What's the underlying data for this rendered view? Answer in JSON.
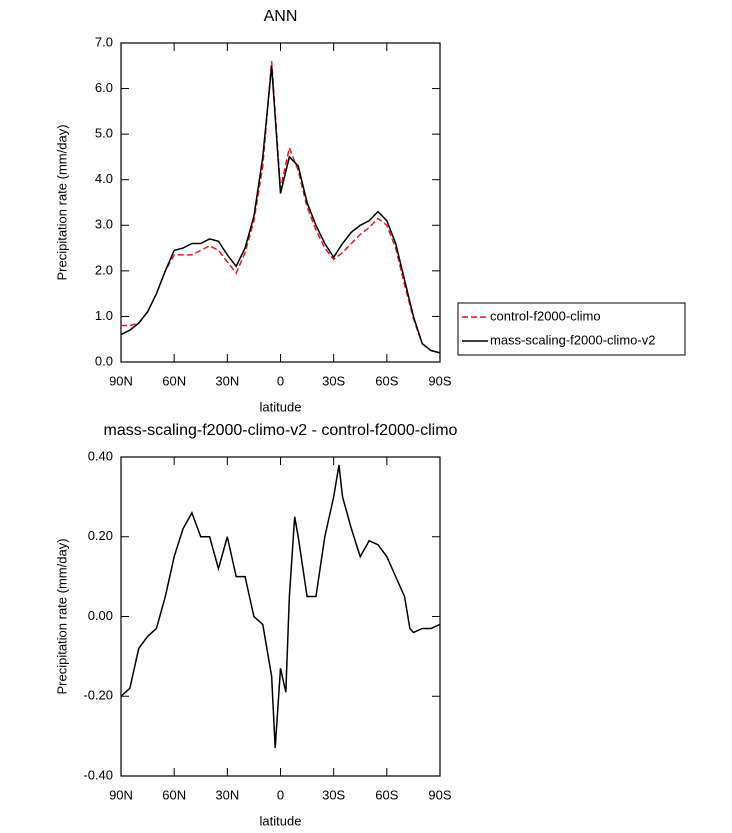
{
  "chart_data": [
    {
      "type": "line",
      "title": "ANN",
      "xlabel": "latitude",
      "ylabel": "Precipitation rate (mm/day)",
      "x": [
        90,
        85,
        80,
        75,
        70,
        65,
        60,
        55,
        50,
        45,
        40,
        35,
        30,
        25,
        20,
        15,
        10,
        5,
        0,
        -5,
        -10,
        -15,
        -20,
        -25,
        -30,
        -35,
        -40,
        -45,
        -50,
        -55,
        -60,
        -65,
        -70,
        -75,
        -80,
        -85,
        -90
      ],
      "series": [
        {
          "name": "control-f2000-climo",
          "color": "#e41a1c",
          "dash": true,
          "values": [
            0.8,
            0.8,
            0.85,
            1.1,
            1.5,
            2.0,
            2.35,
            2.35,
            2.35,
            2.45,
            2.55,
            2.45,
            2.2,
            1.95,
            2.4,
            3.1,
            4.3,
            6.6,
            3.8,
            4.7,
            4.2,
            3.4,
            2.9,
            2.5,
            2.25,
            2.4,
            2.6,
            2.8,
            2.95,
            3.15,
            3.0,
            2.5,
            1.7,
            0.95,
            0.4,
            0.25,
            0.2
          ]
        },
        {
          "name": "mass-scaling-f2000-climo-v2",
          "color": "#000000",
          "dash": false,
          "values": [
            0.6,
            0.7,
            0.85,
            1.1,
            1.5,
            2.0,
            2.45,
            2.5,
            2.6,
            2.6,
            2.7,
            2.65,
            2.35,
            2.1,
            2.5,
            3.2,
            4.5,
            6.5,
            3.7,
            4.5,
            4.3,
            3.5,
            3.0,
            2.6,
            2.3,
            2.6,
            2.85,
            3.0,
            3.1,
            3.3,
            3.1,
            2.6,
            1.8,
            1.0,
            0.4,
            0.25,
            0.2
          ]
        }
      ],
      "xlim": [
        90,
        -90
      ],
      "xticks": [
        {
          "value": 90,
          "label": "90N"
        },
        {
          "value": 60,
          "label": "60N"
        },
        {
          "value": 30,
          "label": "30N"
        },
        0,
        {
          "value": -30,
          "label": "30S"
        },
        {
          "value": -60,
          "label": "60S"
        },
        {
          "value": -90,
          "label": "90S"
        }
      ],
      "ylim": [
        0,
        7
      ],
      "yticks": [
        {
          "value": 0,
          "label": "0.0"
        },
        {
          "value": 1,
          "label": "1.0"
        },
        {
          "value": 2,
          "label": "2.0"
        },
        {
          "value": 3,
          "label": "3.0"
        },
        {
          "value": 4,
          "label": "4.0"
        },
        {
          "value": 5,
          "label": "5.0"
        },
        {
          "value": 6,
          "label": "6.0"
        },
        {
          "value": 7,
          "label": "7.0"
        }
      ],
      "legend": "right"
    },
    {
      "type": "line",
      "title": "mass-scaling-f2000-climo-v2 - control-f2000-climo",
      "xlabel": "latitude",
      "ylabel": "Precipitation rate (mm/day)",
      "x": [
        90,
        85,
        80,
        75,
        70,
        65,
        60,
        55,
        50,
        45,
        40,
        35,
        30,
        25,
        20,
        15,
        10,
        5,
        3,
        0,
        -3,
        -5,
        -8,
        -10,
        -15,
        -20,
        -25,
        -30,
        -33,
        -35,
        -40,
        -45,
        -50,
        -55,
        -60,
        -65,
        -70,
        -73,
        -75,
        -80,
        -85,
        -90
      ],
      "series": [
        {
          "name": "mass-scaling-f2000-climo-v2 - control-f2000-climo",
          "color": "#000000",
          "dash": false,
          "values": [
            -0.2,
            -0.18,
            -0.08,
            -0.05,
            -0.03,
            0.05,
            0.15,
            0.22,
            0.26,
            0.2,
            0.2,
            0.12,
            0.2,
            0.1,
            0.1,
            0.0,
            -0.02,
            -0.15,
            -0.33,
            -0.13,
            -0.19,
            0.05,
            0.25,
            0.2,
            0.05,
            0.05,
            0.2,
            0.3,
            0.38,
            0.3,
            0.22,
            0.15,
            0.19,
            0.18,
            0.15,
            0.1,
            0.05,
            -0.03,
            -0.04,
            -0.03,
            -0.03,
            -0.02
          ]
        }
      ],
      "xlim": [
        90,
        -90
      ],
      "xticks": [
        {
          "value": 90,
          "label": "90N"
        },
        {
          "value": 60,
          "label": "60N"
        },
        {
          "value": 30,
          "label": "30N"
        },
        0,
        {
          "value": -30,
          "label": "30S"
        },
        {
          "value": -60,
          "label": "60S"
        },
        {
          "value": -90,
          "label": "90S"
        }
      ],
      "ylim": [
        -0.4,
        0.4
      ],
      "yticks": [
        {
          "value": -0.4,
          "label": "-0.40"
        },
        {
          "value": -0.2,
          "label": "-0.20"
        },
        {
          "value": 0,
          "label": "0.00"
        },
        {
          "value": 0.2,
          "label": "0.20"
        },
        {
          "value": 0.4,
          "label": "0.40"
        }
      ]
    }
  ]
}
